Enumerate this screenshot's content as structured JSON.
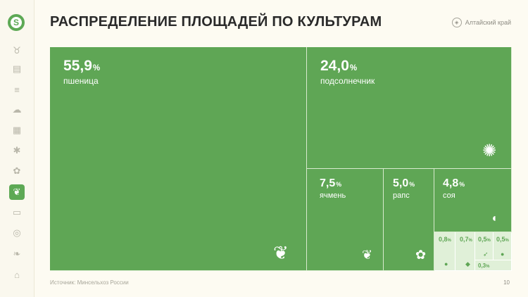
{
  "header": {
    "title": "РАСПРЕДЕЛЕНИЕ ПЛОЩАДЕЙ ПО КУЛЬТУРАМ",
    "region": "Алтайский край"
  },
  "sidebar": {
    "logo": "S",
    "items": [
      {
        "icon": "cow-icon",
        "glyph": "♉",
        "active": false
      },
      {
        "icon": "tractor-icon",
        "glyph": "▤",
        "active": false
      },
      {
        "icon": "field-icon",
        "glyph": "≡",
        "active": false
      },
      {
        "icon": "weather-icon",
        "glyph": "☁",
        "active": false
      },
      {
        "icon": "calendar-icon",
        "glyph": "▦",
        "active": false
      },
      {
        "icon": "bug-icon",
        "glyph": "✱",
        "active": false
      },
      {
        "icon": "plant-hand-icon",
        "glyph": "✿",
        "active": false
      },
      {
        "icon": "crops-icon",
        "glyph": "❦",
        "active": true
      },
      {
        "icon": "document-icon",
        "glyph": "▭",
        "active": false
      },
      {
        "icon": "globe-icon",
        "glyph": "◎",
        "active": false
      },
      {
        "icon": "vegetables-icon",
        "glyph": "❧",
        "active": false
      },
      {
        "icon": "bank-icon",
        "glyph": "⌂",
        "active": false
      }
    ]
  },
  "treemap": {
    "crops": [
      {
        "value": "55,9",
        "sign": "%",
        "name": "пшеница",
        "icon": "wheat-icon",
        "glyph": "❦"
      },
      {
        "value": "24,0",
        "sign": "%",
        "name": "подсолнечник",
        "icon": "sunflower-icon",
        "glyph": "✺"
      },
      {
        "value": "7,5",
        "sign": "%",
        "name": "ячмень",
        "icon": "barley-icon",
        "glyph": "❦"
      },
      {
        "value": "5,0",
        "sign": "%",
        "name": "рапс",
        "icon": "rapeseed-icon",
        "glyph": "✿"
      },
      {
        "value": "4,8",
        "sign": "%",
        "name": "соя",
        "icon": "soybean-icon",
        "glyph": "◖"
      }
    ],
    "minor": [
      {
        "value": "0,8",
        "sign": "%",
        "icon": "leaf-icon",
        "glyph": "●"
      },
      {
        "value": "0,7",
        "sign": "%",
        "icon": "sprout-icon",
        "glyph": "◆"
      },
      {
        "value": "0,5",
        "sign": "%",
        "icon": "carrot-icon",
        "glyph": "➶"
      },
      {
        "value": "0,5",
        "sign": "%",
        "icon": "tomato-icon",
        "glyph": "●"
      },
      {
        "value": "0,3",
        "sign": "%",
        "icon": "",
        "glyph": ""
      }
    ]
  },
  "footer": {
    "source": "Источник: Минсельхоз России",
    "page": "10"
  }
}
